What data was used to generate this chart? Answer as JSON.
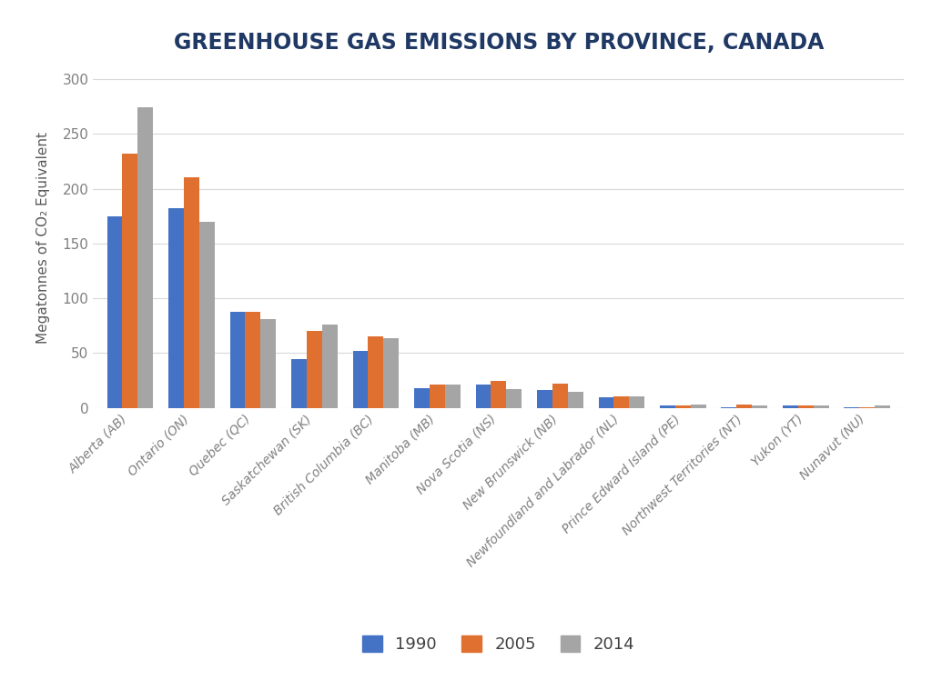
{
  "title": "GREENHOUSE GAS EMISSIONS BY PROVINCE, CANADA",
  "ylabel": "Megatonnes of CO₂ Equivalent",
  "categories": [
    "Alberta (AB)",
    "Ontario (ON)",
    "Quebec (QC)",
    "Saskatchewan (SK)",
    "British Columbia (BC)",
    "Manitoba (MB)",
    "Nova Scotia (NS)",
    "New Brunswick (NB)",
    "Newfoundland and Labrador (NL)",
    "Prince Edward Island (PE)",
    "Northwest Territories (NT)",
    "Yukon (YT)",
    "Nunavut (NU)"
  ],
  "series": {
    "1990": [
      175,
      182,
      88,
      45,
      52,
      18,
      21,
      16,
      10,
      2,
      0.5,
      2,
      0.3
    ],
    "2005": [
      232,
      210,
      88,
      70,
      65,
      21,
      25,
      22,
      11,
      2,
      3,
      2,
      0.5
    ],
    "2014": [
      274,
      170,
      81,
      76,
      64,
      21,
      17,
      15,
      11,
      3,
      2,
      2,
      2
    ]
  },
  "colors": {
    "1990": "#4472C4",
    "2005": "#E07030",
    "2014": "#A5A5A5"
  },
  "ylim": [
    0,
    310
  ],
  "yticks": [
    0,
    50,
    100,
    150,
    200,
    250,
    300
  ],
  "title_color": "#1F3864",
  "title_fontsize": 17,
  "ylabel_color": "#595959",
  "tick_color": "#808080",
  "label_color": "#808080",
  "background_color": "#FFFFFF",
  "bar_width": 0.25,
  "legend_labels": [
    "1990",
    "2005",
    "2014"
  ],
  "grid_color": "#D8D8D8"
}
